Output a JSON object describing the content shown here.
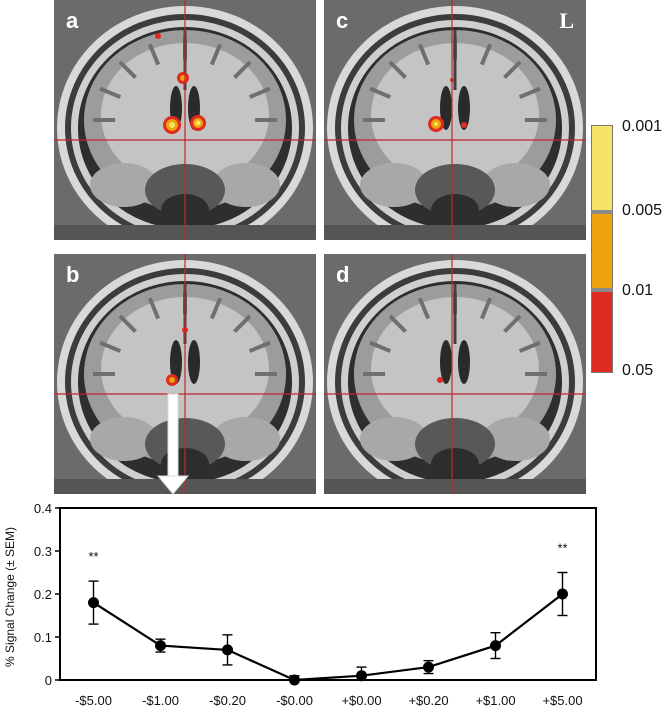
{
  "panels": [
    {
      "letter": "a",
      "side_label": ""
    },
    {
      "letter": "c",
      "side_label": "L"
    },
    {
      "letter": "b",
      "side_label": ""
    },
    {
      "letter": "d",
      "side_label": ""
    }
  ],
  "colorbar": {
    "ticks": [
      "0.001",
      "0.005",
      "0.01",
      "0.05"
    ],
    "colors": {
      "light": "#f7e466",
      "mid": "#eea20b",
      "dark": "#df2a22"
    }
  },
  "chart_data": {
    "type": "line",
    "ylabel": "% Signal Change (± SEM)",
    "xlabel": "",
    "categories": [
      "-$5.00",
      "-$1.00",
      "-$0.20",
      "-$0.00",
      "+$0.00",
      "+$0.20",
      "+$1.00",
      "+$5.00"
    ],
    "values": [
      0.18,
      0.08,
      0.07,
      0.0,
      0.01,
      0.03,
      0.08,
      0.2
    ],
    "errors": [
      0.05,
      0.015,
      0.035,
      0.01,
      0.02,
      0.015,
      0.03,
      0.05
    ],
    "ylim": [
      0,
      0.4
    ],
    "yticks": [
      "0",
      "0.1",
      "0.2",
      "0.3",
      "0.4"
    ],
    "annotations": [
      {
        "text": "**",
        "category": "-$5.00"
      },
      {
        "text": "**",
        "category": "+$5.00"
      }
    ]
  }
}
